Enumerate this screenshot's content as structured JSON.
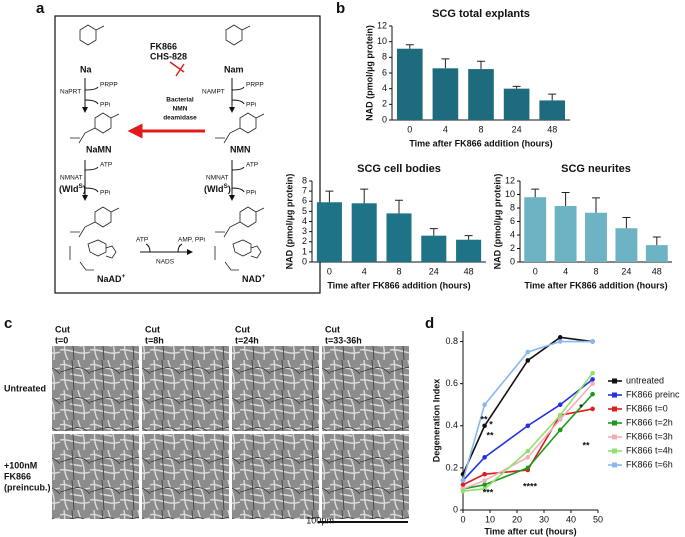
{
  "panel_labels": [
    "a",
    "b",
    "c",
    "d"
  ],
  "diagram": {
    "na": "Na",
    "nam": "Nam",
    "inhibitor_1": "FK866",
    "inhibitor_2": "CHS-828",
    "naprt": "NaPRT",
    "prpp_left": "PRPP",
    "ppi_left_1": "PPi",
    "nampt": "NAMPT",
    "prpp_right": "PRPP",
    "ppi_right_1": "PPi",
    "bacterial_1": "Bacterial",
    "bacterial_2": "NMN",
    "bacterial_3": "deamidase",
    "namn": "NaMN",
    "nmn": "NMN",
    "atp_left": "ATP",
    "ppi_left_2": "PPi",
    "nmnat_left": "NMNAT",
    "wld_left": "(Wld",
    "wld_sup_left": "S",
    "wld_close_left": ")",
    "atp_right": "ATP",
    "ppi_right_2": "PPi",
    "nmnat_right": "NMNAT",
    "wld_right": "(Wld",
    "wld_sup_right": "S",
    "wld_close_right": ")",
    "atp_nads": "ATP",
    "amp_ppi": "AMP, PPi",
    "nads": "NADS",
    "naad": "NaAD",
    "naad_charge": "+",
    "nad": "NAD",
    "nad_charge": "+"
  },
  "micrographs": {
    "columns": [
      [
        "Cut",
        "t=0"
      ],
      [
        "Cut",
        "t=8h"
      ],
      [
        "Cut",
        "t=24h"
      ],
      [
        "Cut",
        "t=33-36h"
      ]
    ],
    "rows": [
      [
        "Untreated"
      ],
      [
        "+100nM",
        "FK866",
        "(preincub.)"
      ]
    ],
    "scale_bar": "100µm"
  },
  "chart_data": [
    {
      "type": "bar",
      "title": "SCG total explants",
      "x_label": "Time after FK866 addition (hours)",
      "y_label": "NAD (pmol/µg protein)",
      "categories": [
        "0",
        "4",
        "8",
        "24",
        "48"
      ],
      "values": [
        9.1,
        6.6,
        6.5,
        4.0,
        2.5
      ],
      "errors": [
        0.5,
        1.2,
        1.0,
        0.3,
        0.8
      ],
      "color": "#1d6b7c",
      "ylim": [
        0,
        12
      ],
      "yticks": [
        0,
        2,
        4,
        6,
        8,
        10,
        12
      ]
    },
    {
      "type": "bar",
      "title": "SCG cell bodies",
      "x_label": "Time after FK866 addition (hours)",
      "y_label": "NAD (pmol/µg protein)",
      "categories": [
        "0",
        "4",
        "8",
        "24",
        "48"
      ],
      "values": [
        5.9,
        5.8,
        4.8,
        2.6,
        2.2
      ],
      "errors": [
        1.1,
        1.4,
        1.3,
        0.7,
        0.4
      ],
      "color": "#1f7386",
      "ylim": [
        0,
        8
      ],
      "yticks": [
        0,
        1,
        2,
        3,
        4,
        5,
        6,
        7,
        8
      ]
    },
    {
      "type": "bar",
      "title": "SCG neurites",
      "x_label": "Time after FK866 addition (hours)",
      "y_label": "NAD (pmol/µg protein)",
      "categories": [
        "0",
        "4",
        "8",
        "24",
        "48"
      ],
      "values": [
        9.6,
        8.3,
        7.3,
        5.0,
        2.5
      ],
      "errors": [
        1.2,
        2.0,
        2.2,
        1.6,
        1.2
      ],
      "color": "#6db3c4",
      "ylim": [
        0,
        12
      ],
      "yticks": [
        0,
        2,
        4,
        6,
        8,
        10,
        12
      ]
    },
    {
      "type": "line",
      "x_label": "Time after cut (hours)",
      "y_label": "Degeneration Index",
      "x": [
        0,
        8,
        24,
        36,
        48
      ],
      "xlim": [
        0,
        50
      ],
      "xticks": [
        0,
        10,
        20,
        30,
        40,
        50
      ],
      "ylim": [
        0,
        0.85
      ],
      "yticks": [
        0,
        0.2,
        0.4,
        0.6,
        0.8
      ],
      "series": [
        {
          "name": "untreated",
          "color": "#111111",
          "values": [
            0.17,
            0.4,
            0.71,
            0.82,
            0.8
          ]
        },
        {
          "name": "FK866 preinc",
          "color": "#2233dd",
          "values": [
            0.14,
            0.25,
            0.4,
            0.5,
            0.62
          ]
        },
        {
          "name": "FK866 t=0",
          "color": "#e01b1b",
          "values": [
            0.12,
            0.17,
            0.19,
            0.45,
            0.48
          ]
        },
        {
          "name": "FK866 t=2h",
          "color": "#1a9a1a",
          "values": [
            0.1,
            0.12,
            0.2,
            0.38,
            0.55
          ]
        },
        {
          "name": "FK866 t=3h",
          "color": "#f0b0b8",
          "values": [
            0.1,
            0.14,
            0.25,
            0.43,
            0.6
          ]
        },
        {
          "name": "FK866 t=4h",
          "color": "#90e070",
          "values": [
            0.09,
            0.1,
            0.28,
            0.45,
            0.65
          ]
        },
        {
          "name": "FK866 t=6h",
          "color": "#88b8ee",
          "values": [
            0.14,
            0.5,
            0.75,
            0.8,
            0.8
          ]
        }
      ],
      "annotations": [
        "*",
        "**",
        "**",
        "***",
        "****",
        "*",
        "**"
      ]
    }
  ]
}
